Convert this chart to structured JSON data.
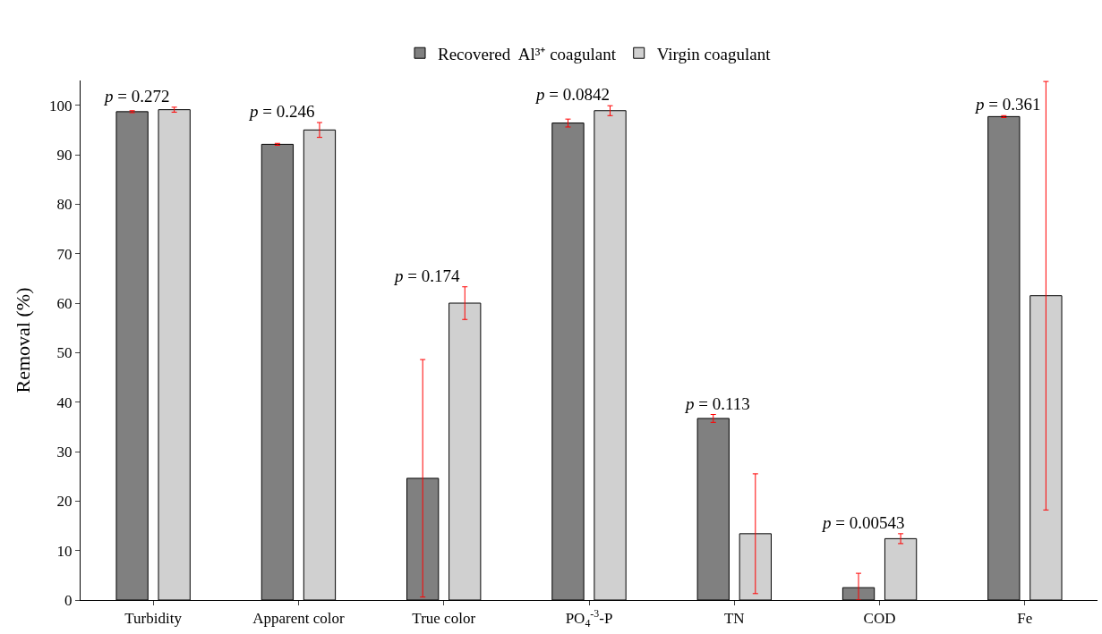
{
  "chart_data": {
    "type": "bar",
    "ylabel": "Removal (%)",
    "categories": [
      "Turbidity",
      "Apparent color",
      "True color",
      "PO$_{4}$$^{-3}$-P",
      "TN",
      "COD",
      "Fe"
    ],
    "series": [
      {
        "name": "Recovered  Al³⁺ coagulant",
        "color": "#808080",
        "values": [
          98.7,
          92.1,
          24.6,
          96.4,
          36.7,
          2.5,
          97.7
        ],
        "errors": [
          0.2,
          0.2,
          24,
          0.8,
          0.8,
          [
            0,
            5.4
          ],
          0.2
        ]
      },
      {
        "name": "Virgin coagulant",
        "color": "#d0d0d0",
        "values": [
          99.1,
          95.0,
          60.0,
          98.9,
          13.4,
          12.4,
          61.5
        ],
        "errors": [
          0.5,
          1.5,
          3.3,
          1.0,
          12.1,
          1.0,
          43.3
        ]
      }
    ],
    "ylim": [
      0,
      105
    ],
    "yticks": [
      0,
      10,
      20,
      30,
      40,
      50,
      60,
      70,
      80,
      90,
      100
    ],
    "legend": "top",
    "annotations": [
      "p = 0.272",
      "p = 0.246",
      "p = 0.174",
      "p = 0.0842",
      "p = 0.113",
      "p = 0.00543",
      "p = 0.361"
    ]
  }
}
